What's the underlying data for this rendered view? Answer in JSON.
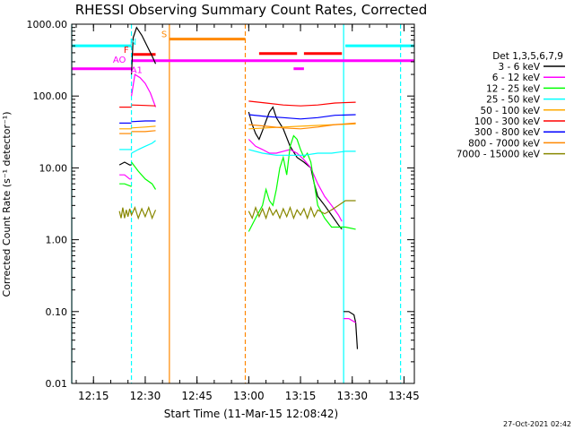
{
  "chart_data": {
    "type": "line",
    "title": "RHESSI Observing Summary Count Rates, Corrected",
    "xlabel": "Start Time (11-Mar-15 12:08:42)",
    "ylabel": "Corrected Count Rate (s⁻¹ detector⁻¹)",
    "footer_date": "27-Oct-2021 02:42",
    "x_unit": "minutes",
    "xlim": [
      "12:08:42",
      "13:48:00"
    ],
    "ylim": [
      0.01,
      1000
    ],
    "y_scale": "log",
    "grid": false,
    "legend_position": "right",
    "legend_title": "Det 1,3,5,6,7,9",
    "x_ticks": [
      {
        "t": "12:15",
        "label": "12:15"
      },
      {
        "t": "12:30",
        "label": "12:30"
      },
      {
        "t": "12:45",
        "label": "12:45"
      },
      {
        "t": "13:00",
        "label": "13:00"
      },
      {
        "t": "13:15",
        "label": "13:15"
      },
      {
        "t": "13:30",
        "label": "13:30"
      },
      {
        "t": "13:45",
        "label": "13:45"
      }
    ],
    "y_ticks": [
      {
        "v": 1000,
        "label": "1000.00"
      },
      {
        "v": 100,
        "label": "100.00"
      },
      {
        "v": 10,
        "label": "10.00"
      },
      {
        "v": 1,
        "label": "1.00"
      },
      {
        "v": 0.1,
        "label": "0.10"
      },
      {
        "v": 0.01,
        "label": "0.01"
      }
    ],
    "series": [
      {
        "name": "3 - 6 keV",
        "color": "#000000",
        "segments": [
          [
            [
              "12:22:30",
              11
            ],
            [
              "12:24:00",
              12
            ],
            [
              "12:25:30",
              11
            ],
            [
              "12:26:00",
              11
            ]
          ],
          [
            [
              "12:26:00",
              200
            ],
            [
              "12:26:30",
              650
            ],
            [
              "12:27:30",
              900
            ],
            [
              "12:29:00",
              700
            ],
            [
              "12:30:30",
              500
            ],
            [
              "12:32:00",
              360
            ],
            [
              "12:33:00",
              280
            ]
          ],
          [
            [
              "13:00:00",
              60
            ],
            [
              "13:01:00",
              40
            ],
            [
              "13:02:00",
              30
            ],
            [
              "13:03:00",
              25
            ],
            [
              "13:04:00",
              33
            ],
            [
              "13:05:00",
              45
            ],
            [
              "13:06:00",
              60
            ],
            [
              "13:07:00",
              70
            ],
            [
              "13:08:00",
              50
            ],
            [
              "13:10:00",
              35
            ],
            [
              "13:12:00",
              20
            ],
            [
              "13:14:00",
              14
            ],
            [
              "13:16:00",
              12
            ],
            [
              "13:18:00",
              10
            ],
            [
              "13:19:00",
              6
            ],
            [
              "13:20:00",
              4
            ],
            [
              "13:22:00",
              3
            ],
            [
              "13:24:00",
              2.2
            ],
            [
              "13:26:00",
              1.6
            ],
            [
              "13:27:00",
              1.4
            ]
          ],
          [
            [
              "13:27:30",
              0.1
            ],
            [
              "13:29:00",
              0.1
            ],
            [
              "13:30:30",
              0.09
            ],
            [
              "13:31:00",
              0.07
            ],
            [
              "13:31:30",
              0.03
            ]
          ]
        ]
      },
      {
        "name": "6 - 12 keV",
        "color": "#ff00ff",
        "segments": [
          [
            [
              "12:22:30",
              8
            ],
            [
              "12:24:00",
              8
            ],
            [
              "12:25:30",
              7
            ],
            [
              "12:26:00",
              7
            ]
          ],
          [
            [
              "12:26:00",
              100
            ],
            [
              "12:27:00",
              200
            ],
            [
              "12:28:30",
              180
            ],
            [
              "12:30:00",
              150
            ],
            [
              "12:31:30",
              110
            ],
            [
              "12:33:00",
              70
            ]
          ],
          [
            [
              "13:00:00",
              25
            ],
            [
              "13:02:00",
              20
            ],
            [
              "13:04:00",
              18
            ],
            [
              "13:06:00",
              16
            ],
            [
              "13:08:00",
              16
            ],
            [
              "13:10:00",
              17
            ],
            [
              "13:12:00",
              18
            ],
            [
              "13:14:00",
              16
            ],
            [
              "13:16:00",
              13
            ],
            [
              "13:18:00",
              10
            ],
            [
              "13:20:00",
              6
            ],
            [
              "13:22:00",
              4
            ],
            [
              "13:24:00",
              3
            ],
            [
              "13:26:00",
              2.2
            ],
            [
              "13:27:00",
              1.8
            ]
          ],
          [
            [
              "13:27:30",
              0.08
            ],
            [
              "13:29:00",
              0.08
            ],
            [
              "13:31:00",
              0.07
            ]
          ]
        ]
      },
      {
        "name": "12 - 25 keV",
        "color": "#00ff00",
        "segments": [
          [
            [
              "12:22:30",
              6
            ],
            [
              "12:24:00",
              6
            ],
            [
              "12:26:00",
              5.5
            ]
          ],
          [
            [
              "12:26:00",
              12
            ],
            [
              "12:28:00",
              9
            ],
            [
              "12:30:00",
              7
            ],
            [
              "12:32:00",
              6
            ],
            [
              "12:33:00",
              5
            ]
          ],
          [
            [
              "13:00:00",
              1.3
            ],
            [
              "13:02:00",
              2
            ],
            [
              "13:04:00",
              3
            ],
            [
              "13:05:00",
              5
            ],
            [
              "13:06:00",
              3.5
            ],
            [
              "13:07:00",
              3
            ],
            [
              "13:08:00",
              5
            ],
            [
              "13:09:00",
              10
            ],
            [
              "13:10:00",
              14
            ],
            [
              "13:11:00",
              8
            ],
            [
              "13:12:00",
              20
            ],
            [
              "13:13:00",
              28
            ],
            [
              "13:14:00",
              25
            ],
            [
              "13:15:00",
              18
            ],
            [
              "13:16:00",
              14
            ],
            [
              "13:17:00",
              16
            ],
            [
              "13:18:00",
              12
            ],
            [
              "13:19:00",
              6
            ],
            [
              "13:20:00",
              3
            ],
            [
              "13:22:00",
              2
            ],
            [
              "13:24:00",
              1.5
            ],
            [
              "13:28:00",
              1.5
            ],
            [
              "13:31:00",
              1.4
            ]
          ]
        ]
      },
      {
        "name": "25 - 50 keV",
        "color": "#00ffff",
        "segments": [
          [
            [
              "12:22:30",
              18
            ],
            [
              "12:24:00",
              18
            ],
            [
              "12:26:00",
              18
            ]
          ],
          [
            [
              "12:26:00",
              16
            ],
            [
              "12:28:00",
              18
            ],
            [
              "12:30:00",
              20
            ],
            [
              "12:32:00",
              22
            ],
            [
              "12:33:00",
              24
            ]
          ],
          [
            [
              "13:00:00",
              18
            ],
            [
              "13:04:00",
              16
            ],
            [
              "13:08:00",
              15
            ],
            [
              "13:12:00",
              15
            ],
            [
              "13:16:00",
              15
            ],
            [
              "13:20:00",
              16
            ],
            [
              "13:24:00",
              16
            ],
            [
              "13:28:00",
              17
            ],
            [
              "13:31:00",
              17
            ]
          ]
        ]
      },
      {
        "name": "50 - 100 keV",
        "color": "#ffaa00",
        "segments": [
          [
            [
              "12:22:30",
              35
            ],
            [
              "12:26:00",
              35
            ]
          ],
          [
            [
              "12:26:00",
              36
            ],
            [
              "12:30:00",
              37
            ],
            [
              "12:33:00",
              38
            ]
          ],
          [
            [
              "13:00:00",
              35
            ],
            [
              "13:05:00",
              36
            ],
            [
              "13:10:00",
              37
            ],
            [
              "13:15:00",
              38
            ],
            [
              "13:20:00",
              39
            ],
            [
              "13:25:00",
              40
            ],
            [
              "13:31:00",
              41
            ]
          ]
        ]
      },
      {
        "name": "100 - 300 keV",
        "color": "#ff0000",
        "segments": [
          [
            [
              "12:22:30",
              70
            ],
            [
              "12:26:00",
              70
            ]
          ],
          [
            [
              "12:26:00",
              75
            ],
            [
              "12:30:00",
              74
            ],
            [
              "12:33:00",
              73
            ]
          ],
          [
            [
              "13:00:00",
              85
            ],
            [
              "13:05:00",
              80
            ],
            [
              "13:10:00",
              75
            ],
            [
              "13:15:00",
              73
            ],
            [
              "13:20:00",
              75
            ],
            [
              "13:25:00",
              80
            ],
            [
              "13:31:00",
              82
            ]
          ]
        ]
      },
      {
        "name": "300 - 800 keV",
        "color": "#0000ff",
        "segments": [
          [
            [
              "12:22:30",
              42
            ],
            [
              "12:26:00",
              42
            ]
          ],
          [
            [
              "12:26:00",
              44
            ],
            [
              "12:30:00",
              45
            ],
            [
              "12:33:00",
              45
            ]
          ],
          [
            [
              "13:00:00",
              55
            ],
            [
              "13:05:00",
              52
            ],
            [
              "13:10:00",
              50
            ],
            [
              "13:15:00",
              48
            ],
            [
              "13:20:00",
              50
            ],
            [
              "13:25:00",
              54
            ],
            [
              "13:31:00",
              55
            ]
          ]
        ]
      },
      {
        "name": "800 - 7000 keV",
        "color": "#ff8800",
        "segments": [
          [
            [
              "12:22:30",
              30
            ],
            [
              "12:26:00",
              30
            ]
          ],
          [
            [
              "12:26:00",
              32
            ],
            [
              "12:30:00",
              32
            ],
            [
              "12:33:00",
              33
            ]
          ],
          [
            [
              "13:00:00",
              40
            ],
            [
              "13:05:00",
              38
            ],
            [
              "13:10:00",
              36
            ],
            [
              "13:15:00",
              35
            ],
            [
              "13:20:00",
              37
            ],
            [
              "13:25:00",
              40
            ],
            [
              "13:31:00",
              42
            ]
          ]
        ]
      },
      {
        "name": "7000 - 15000 keV",
        "color": "#888800",
        "segments": [
          [
            [
              "12:22:30",
              2.5
            ],
            [
              "12:23:00",
              2
            ],
            [
              "12:23:30",
              2.8
            ],
            [
              "12:24:00",
              2
            ],
            [
              "12:24:30",
              2.6
            ],
            [
              "12:25:00",
              2.1
            ],
            [
              "12:25:30",
              2.7
            ],
            [
              "12:26:00",
              2.2
            ],
            [
              "12:27:00",
              2.8
            ],
            [
              "12:28:00",
              2
            ],
            [
              "12:29:00",
              2.7
            ],
            [
              "12:30:00",
              2.1
            ],
            [
              "12:31:00",
              2.8
            ],
            [
              "12:32:00",
              2
            ],
            [
              "12:33:00",
              2.6
            ]
          ],
          [
            [
              "13:00:00",
              2.5
            ],
            [
              "13:01:00",
              2
            ],
            [
              "13:02:00",
              2.8
            ],
            [
              "13:03:00",
              2.1
            ],
            [
              "13:04:00",
              2.7
            ],
            [
              "13:05:00",
              2
            ],
            [
              "13:06:00",
              2.8
            ],
            [
              "13:07:00",
              2.2
            ],
            [
              "13:08:00",
              2.6
            ],
            [
              "13:09:00",
              2
            ],
            [
              "13:10:00",
              2.7
            ],
            [
              "13:11:00",
              2.1
            ],
            [
              "13:12:00",
              2.8
            ],
            [
              "13:13:00",
              2
            ],
            [
              "13:14:00",
              2.6
            ],
            [
              "13:15:00",
              2.2
            ],
            [
              "13:16:00",
              2.7
            ],
            [
              "13:17:00",
              2
            ],
            [
              "13:18:00",
              2.8
            ],
            [
              "13:19:00",
              2.1
            ],
            [
              "13:20:00",
              2.6
            ],
            [
              "13:22:00",
              2.3
            ],
            [
              "13:24:00",
              2.6
            ],
            [
              "13:26:00",
              3
            ],
            [
              "13:28:00",
              3.5
            ],
            [
              "13:31:00",
              3.5
            ]
          ]
        ]
      }
    ],
    "vertical_lines": [
      {
        "t": "12:08:42",
        "color": "#00ffff",
        "style": "solid"
      },
      {
        "t": "12:26:00",
        "color": "#00ffff",
        "style": "dashed"
      },
      {
        "t": "12:37:00",
        "color": "#ff8800",
        "style": "solid"
      },
      {
        "t": "12:59:00",
        "color": "#ff8800",
        "style": "dashed"
      },
      {
        "t": "13:27:30",
        "color": "#00ffff",
        "style": "solid"
      },
      {
        "t": "13:44:00",
        "color": "#00ffff",
        "style": "dashed"
      }
    ],
    "flag_bars": [
      {
        "t0": "12:08:42",
        "t1": "12:26:00",
        "value": 500,
        "color": "#00ffff"
      },
      {
        "t0": "13:28:00",
        "t1": "13:48:00",
        "value": 500,
        "color": "#00ffff"
      },
      {
        "t0": "12:08:42",
        "t1": "12:26:00",
        "value": 240,
        "color": "#ff00ff"
      },
      {
        "t0": "12:26:00",
        "t1": "13:48:00",
        "value": 310,
        "color": "#ff00ff"
      },
      {
        "t0": "13:13:00",
        "t1": "13:16:00",
        "value": 240,
        "color": "#ff00ff"
      },
      {
        "t0": "12:26:30",
        "t1": "12:33:00",
        "value": 380,
        "color": "#ff0000"
      },
      {
        "t0": "13:03:00",
        "t1": "13:14:00",
        "value": 390,
        "color": "#ff0000"
      },
      {
        "t0": "13:16:00",
        "t1": "13:27:00",
        "value": 390,
        "color": "#ff0000"
      },
      {
        "t0": "12:37:00",
        "t1": "12:59:00",
        "value": 620,
        "color": "#ff8800"
      }
    ],
    "flag_labels": [
      {
        "text": "S",
        "t": "12:35:30",
        "value": 660,
        "color": "#ff8800"
      },
      {
        "text": "F",
        "t": "12:24:30",
        "value": 400,
        "color": "#ff0000"
      },
      {
        "text": "N",
        "t": "12:26:30",
        "value": 520,
        "color": "#00ffff"
      },
      {
        "text": "AO",
        "t": "12:22:30",
        "value": 290,
        "color": "#ff00ff"
      },
      {
        "text": "A1",
        "t": "12:27:30",
        "value": 210,
        "color": "#ff00ff"
      }
    ]
  }
}
